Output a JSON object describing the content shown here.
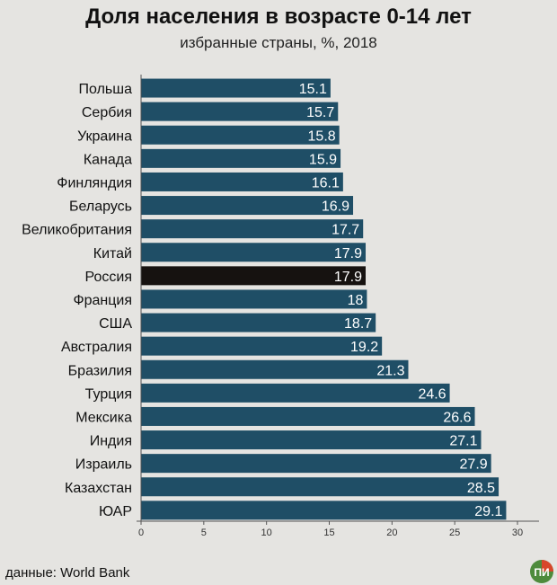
{
  "title": "Доля населения в возрасте 0-14 лет",
  "subtitle": "избранные страны, %, 2018",
  "source": "данные: World Bank",
  "logo_text": "ПИ",
  "colors": {
    "bar": "#1f4e66",
    "highlight": "#161210",
    "background": "#e5e4e1",
    "label": "#ffffff"
  },
  "chart_data": {
    "type": "bar",
    "orientation": "horizontal",
    "title": "Доля населения в возрасте 0-14 лет",
    "subtitle": "избранные страны, %, 2018",
    "categories": [
      "Польша",
      "Сербия",
      "Украина",
      "Канада",
      "Финляндия",
      "Беларусь",
      "Великобритания",
      "Китай",
      "Россия",
      "Франция",
      "США",
      "Австралия",
      "Бразилия",
      "Турция",
      "Мексика",
      "Индия",
      "Израиль",
      "Казахстан",
      "ЮАР"
    ],
    "values": [
      15.1,
      15.7,
      15.8,
      15.9,
      16.1,
      16.9,
      17.7,
      17.9,
      17.9,
      18,
      18.7,
      19.2,
      21.3,
      24.6,
      26.6,
      27.1,
      27.9,
      28.5,
      29.1
    ],
    "value_labels": [
      "15.1",
      "15.7",
      "15.8",
      "15.9",
      "16.1",
      "16.9",
      "17.7",
      "17.9",
      "17.9",
      "18",
      "18.7",
      "19.2",
      "21.3",
      "24.6",
      "26.6",
      "27.1",
      "27.9",
      "28.5",
      "29.1"
    ],
    "highlight": "Россия",
    "xlim": [
      0,
      30
    ],
    "xticks": [
      "0",
      "5",
      "10",
      "15",
      "20",
      "25",
      "30"
    ],
    "xlabel": "",
    "ylabel": "",
    "grid": false,
    "legend": "none"
  }
}
